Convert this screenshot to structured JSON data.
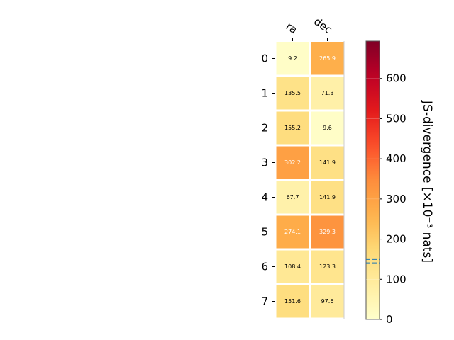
{
  "chart_data": {
    "type": "heatmap",
    "x_categories": [
      "ra",
      "dec"
    ],
    "y_categories": [
      "0",
      "1",
      "2",
      "3",
      "4",
      "5",
      "6",
      "7"
    ],
    "values": [
      [
        9.2,
        265.9
      ],
      [
        135.5,
        71.3
      ],
      [
        155.2,
        9.6
      ],
      [
        302.2,
        141.9
      ],
      [
        67.7,
        141.9
      ],
      [
        274.1,
        329.3
      ],
      [
        108.4,
        123.3
      ],
      [
        151.6,
        97.6
      ]
    ],
    "value_labels": [
      [
        "9.2",
        "265.9"
      ],
      [
        "135.5",
        "71.3"
      ],
      [
        "155.2",
        "9.6"
      ],
      [
        "302.2",
        "141.9"
      ],
      [
        "67.7",
        "141.9"
      ],
      [
        "274.1",
        "329.3"
      ],
      [
        "108.4",
        "123.3"
      ],
      [
        "151.6",
        "97.6"
      ]
    ],
    "colormap": "YlOrRd",
    "colorbar": {
      "label": "JS-divergence [×10⁻³ nats]",
      "range": [
        0,
        693
      ],
      "ticks": [
        0,
        100,
        200,
        300,
        400,
        500,
        600
      ],
      "tick_labels": [
        "0",
        "100",
        "200",
        "300",
        "400",
        "500",
        "600"
      ],
      "reference_lines": [
        140,
        150
      ],
      "reference_line_color": "#1f77b4"
    }
  }
}
